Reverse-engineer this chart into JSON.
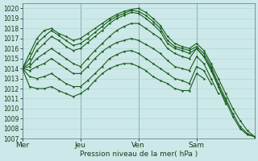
{
  "xlabel": "Pression niveau de la mer( hPa )",
  "ylim": [
    1007,
    1020.5
  ],
  "yticks": [
    1007,
    1008,
    1009,
    1010,
    1011,
    1012,
    1013,
    1014,
    1015,
    1016,
    1017,
    1018,
    1019,
    1020
  ],
  "xtick_labels": [
    "Mer",
    "Jeu",
    "Ven",
    "Sam"
  ],
  "xtick_positions": [
    0,
    48,
    96,
    144
  ],
  "xlim": [
    0,
    192
  ],
  "bg_color": "#cce8e8",
  "grid_color": "#aad4d4",
  "line_color": "#1a5c1a",
  "line_width": 0.8,
  "marker": ".",
  "marker_size": 1.5,
  "lines": [
    {
      "x": [
        0,
        6,
        12,
        18,
        24,
        30,
        36,
        42,
        48,
        54,
        60,
        66,
        72,
        78,
        84,
        90,
        96,
        102,
        108,
        114,
        120,
        126,
        132,
        138,
        144,
        150,
        156,
        162,
        168,
        174,
        180,
        186,
        192
      ],
      "y": [
        1014,
        1015.5,
        1017.0,
        1017.8,
        1018.0,
        1017.5,
        1017.2,
        1016.8,
        1017.0,
        1017.5,
        1018.0,
        1018.5,
        1019.0,
        1019.4,
        1019.7,
        1019.9,
        1020.0,
        1019.6,
        1019.0,
        1018.3,
        1017.2,
        1016.5,
        1016.2,
        1016.0,
        1016.5,
        1015.8,
        1014.5,
        1013.0,
        1011.5,
        1010.0,
        1008.8,
        1007.8,
        1007.2
      ]
    },
    {
      "x": [
        0,
        6,
        12,
        18,
        24,
        30,
        36,
        42,
        48,
        54,
        60,
        66,
        72,
        78,
        84,
        90,
        96,
        102,
        108,
        114,
        120,
        126,
        132,
        138,
        144,
        150,
        156,
        162,
        168,
        174,
        180,
        186,
        192
      ],
      "y": [
        1014,
        1015.0,
        1016.5,
        1017.2,
        1017.8,
        1017.3,
        1016.8,
        1016.3,
        1016.5,
        1017.0,
        1017.6,
        1018.2,
        1018.8,
        1019.2,
        1019.5,
        1019.8,
        1019.7,
        1019.3,
        1018.7,
        1018.0,
        1016.8,
        1016.2,
        1016.0,
        1015.8,
        1016.2,
        1015.5,
        1014.2,
        1012.5,
        1011.0,
        1009.5,
        1008.2,
        1007.5,
        1007.2
      ]
    },
    {
      "x": [
        0,
        6,
        12,
        18,
        24,
        30,
        36,
        42,
        48,
        54,
        60,
        66,
        72,
        78,
        84,
        90,
        96,
        102,
        108,
        114,
        120,
        126,
        132,
        138,
        144,
        150,
        156,
        162,
        168,
        174,
        180,
        186,
        192
      ],
      "y": [
        1014,
        1014.5,
        1015.8,
        1016.5,
        1017.2,
        1016.8,
        1016.2,
        1015.8,
        1016.0,
        1016.6,
        1017.2,
        1017.8,
        1018.5,
        1019.0,
        1019.3,
        1019.6,
        1019.5,
        1019.0,
        1018.4,
        1017.7,
        1016.5,
        1016.0,
        1015.8,
        1015.5,
        1016.0,
        1015.2,
        1014.0,
        1012.2,
        1010.8,
        1009.2,
        1008.0,
        1007.4,
        1007.2
      ]
    },
    {
      "x": [
        0,
        6,
        12,
        18,
        24,
        30,
        36,
        42,
        48,
        54,
        60,
        66,
        72,
        78,
        84,
        90,
        96,
        102,
        108,
        114,
        120,
        126,
        132,
        138,
        144,
        150,
        156,
        162,
        168
      ],
      "y": [
        1014,
        1014.2,
        1015.0,
        1015.5,
        1016.0,
        1015.5,
        1015.0,
        1014.5,
        1014.2,
        1015.0,
        1015.8,
        1016.5,
        1017.2,
        1017.8,
        1018.2,
        1018.5,
        1018.5,
        1018.0,
        1017.5,
        1017.0,
        1016.0,
        1015.5,
        1015.2,
        1015.0,
        1016.0,
        1015.2,
        1013.8,
        1012.2,
        1010.5
      ]
    },
    {
      "x": [
        0,
        6,
        12,
        18,
        24,
        30,
        36,
        42,
        48,
        54,
        60,
        66,
        72,
        78,
        84,
        90,
        96,
        102,
        108,
        114,
        120,
        126,
        132,
        138,
        144,
        150,
        156,
        162
      ],
      "y": [
        1014,
        1013.8,
        1014.2,
        1014.5,
        1015.0,
        1014.5,
        1014.0,
        1013.5,
        1013.5,
        1014.2,
        1015.0,
        1015.7,
        1016.2,
        1016.6,
        1016.8,
        1017.0,
        1016.8,
        1016.4,
        1016.0,
        1015.5,
        1014.8,
        1014.2,
        1014.0,
        1013.8,
        1015.2,
        1014.5,
        1013.0,
        1011.5
      ]
    },
    {
      "x": [
        0,
        6,
        12,
        18,
        24,
        30,
        36,
        42,
        48,
        54,
        60,
        66,
        72,
        78,
        84,
        90,
        96,
        102,
        108,
        114,
        120,
        126,
        132,
        138,
        144,
        150,
        156
      ],
      "y": [
        1014,
        1013.2,
        1013.0,
        1013.2,
        1013.5,
        1013.0,
        1012.5,
        1012.2,
        1012.2,
        1012.8,
        1013.5,
        1014.2,
        1015.0,
        1015.4,
        1015.7,
        1015.8,
        1015.5,
        1015.0,
        1014.5,
        1014.0,
        1013.5,
        1013.0,
        1012.8,
        1012.5,
        1014.2,
        1013.8,
        1012.5
      ]
    },
    {
      "x": [
        0,
        6,
        12,
        18,
        24,
        30,
        36,
        42,
        48,
        54,
        60,
        66,
        72,
        78,
        84,
        90,
        96,
        102,
        108,
        114,
        120,
        126,
        132,
        138,
        144,
        150
      ],
      "y": [
        1014,
        1012.2,
        1012.0,
        1012.0,
        1012.2,
        1011.8,
        1011.5,
        1011.2,
        1011.5,
        1012.0,
        1012.8,
        1013.5,
        1014.0,
        1014.3,
        1014.5,
        1014.5,
        1014.2,
        1013.8,
        1013.2,
        1012.8,
        1012.5,
        1012.0,
        1011.8,
        1011.8,
        1013.5,
        1013.0
      ]
    }
  ]
}
